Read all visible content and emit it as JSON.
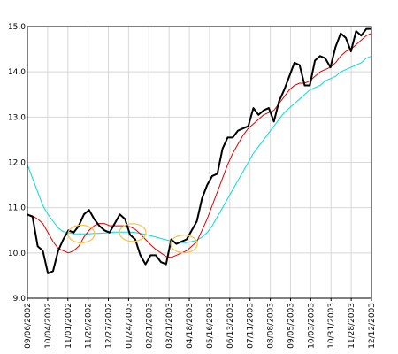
{
  "chart_data": {
    "type": "line",
    "title": "",
    "xlabel": "",
    "ylabel": "",
    "ylim": [
      9.0,
      15.0
    ],
    "y_ticks": [
      "9.0",
      "10.0",
      "11.0",
      "12.0",
      "13.0",
      "14.0",
      "15.0"
    ],
    "x_ticks": [
      "09/06/2002",
      "10/04/2002",
      "11/01/2002",
      "11/29/2002",
      "12/27/2002",
      "01/24/2003",
      "02/21/2003",
      "03/21/2003",
      "04/18/2003",
      "05/16/2003",
      "06/13/2003",
      "07/11/2003",
      "08/08/2003",
      "09/05/2003",
      "10/03/2003",
      "10/31/2003",
      "11/28/2003",
      "12/12/2003"
    ],
    "grid": true,
    "legend": "none",
    "series": [
      {
        "color": "#000000",
        "values": [
          10.85,
          10.8,
          10.15,
          10.05,
          9.55,
          9.6,
          10.05,
          10.3,
          10.5,
          10.45,
          10.6,
          10.85,
          10.95,
          10.75,
          10.6,
          10.5,
          10.45,
          10.65,
          10.85,
          10.75,
          10.4,
          10.3,
          9.95,
          9.75,
          9.95,
          9.95,
          9.8,
          9.75,
          10.3,
          10.2,
          10.25,
          10.3,
          10.5,
          10.7,
          11.2,
          11.5,
          11.7,
          11.75,
          12.3,
          12.55,
          12.55,
          12.7,
          12.75,
          12.8,
          13.2,
          13.05,
          13.15,
          13.2,
          12.9,
          13.35,
          13.6,
          13.9,
          14.2,
          14.15,
          13.7,
          13.7,
          14.25,
          14.35,
          14.3,
          14.1,
          14.55,
          14.85,
          14.75,
          14.45,
          14.9,
          14.8,
          14.95,
          14.95
        ]
      },
      {
        "color": "#dd0000",
        "values": [
          10.85,
          10.82,
          10.75,
          10.65,
          10.45,
          10.25,
          10.1,
          10.05,
          10.0,
          10.05,
          10.15,
          10.35,
          10.5,
          10.6,
          10.65,
          10.65,
          10.6,
          10.6,
          10.6,
          10.6,
          10.58,
          10.52,
          10.42,
          10.3,
          10.18,
          10.08,
          10.0,
          9.92,
          9.9,
          9.95,
          10.0,
          10.05,
          10.15,
          10.25,
          10.5,
          10.75,
          11.05,
          11.35,
          11.65,
          11.95,
          12.2,
          12.4,
          12.6,
          12.75,
          12.85,
          12.95,
          13.05,
          13.1,
          13.15,
          13.3,
          13.45,
          13.6,
          13.7,
          13.75,
          13.75,
          13.8,
          13.9,
          14.0,
          14.05,
          14.1,
          14.2,
          14.35,
          14.45,
          14.5,
          14.6,
          14.7,
          14.8,
          14.85
        ]
      },
      {
        "color": "#00dddd",
        "values": [
          11.95,
          11.65,
          11.35,
          11.05,
          10.85,
          10.7,
          10.55,
          10.47,
          10.45,
          10.42,
          10.42,
          10.42,
          10.42,
          10.43,
          10.43,
          10.44,
          10.45,
          10.46,
          10.46,
          10.46,
          10.46,
          10.45,
          10.43,
          10.41,
          10.38,
          10.35,
          10.32,
          10.29,
          10.26,
          10.24,
          10.23,
          10.23,
          10.25,
          10.28,
          10.35,
          10.45,
          10.6,
          10.8,
          11.0,
          11.2,
          11.4,
          11.6,
          11.8,
          12.0,
          12.2,
          12.35,
          12.5,
          12.65,
          12.8,
          12.95,
          13.1,
          13.2,
          13.3,
          13.4,
          13.5,
          13.6,
          13.65,
          13.7,
          13.8,
          13.85,
          13.9,
          14.0,
          14.05,
          14.1,
          14.15,
          14.2,
          14.3,
          14.35
        ]
      }
    ],
    "annotations": [
      {
        "type": "ellipse",
        "color": "#f5c242",
        "x_index": 10.5,
        "y": 10.42
      },
      {
        "type": "ellipse",
        "color": "#f5c242",
        "x_index": 20.5,
        "y": 10.45
      },
      {
        "type": "ellipse",
        "color": "#f5c242",
        "x_index": 30.5,
        "y": 10.2
      }
    ]
  }
}
